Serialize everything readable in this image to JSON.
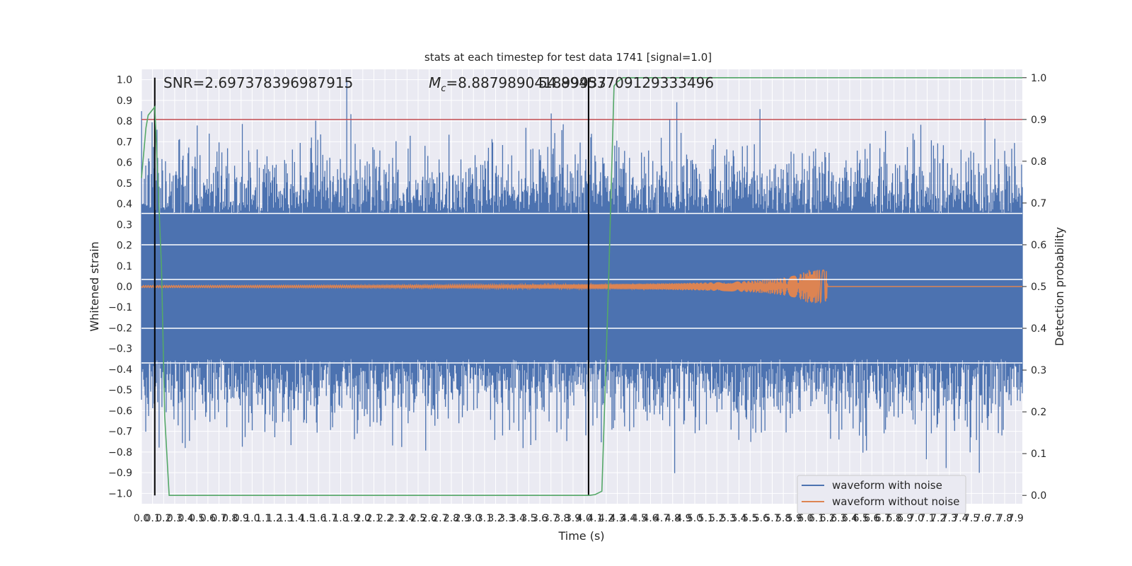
{
  "chart_data": {
    "type": "line",
    "title": "stats at each timestep for test data 1741 [signal=1.0]",
    "xlabel": "Time (s)",
    "ylabel": "Whitened strain",
    "y2label": "Detection probability",
    "xlim": [
      0,
      7.96
    ],
    "ylim": [
      -1.05,
      1.05
    ],
    "y2lim": [
      -0.02,
      1.02
    ],
    "grid": true,
    "legend_position": "lower right",
    "x_ticks": [
      0.0,
      0.1,
      0.2,
      0.3,
      0.4,
      0.5,
      0.6,
      0.7,
      0.8,
      0.9,
      1.0,
      1.1,
      1.2,
      1.3,
      1.4,
      1.5,
      1.6,
      1.7,
      1.8,
      1.9,
      2.0,
      2.1,
      2.2,
      2.3,
      2.4,
      2.5,
      2.6,
      2.7,
      2.8,
      2.9,
      3.0,
      3.1,
      3.2,
      3.3,
      3.4,
      3.5,
      3.6,
      3.7,
      3.8,
      3.9,
      4.0,
      4.1,
      4.2,
      4.3,
      4.4,
      4.5,
      4.6,
      4.7,
      4.8,
      4.9,
      5.0,
      5.1,
      5.2,
      5.3,
      5.4,
      5.5,
      5.6,
      5.7,
      5.8,
      5.9,
      6.0,
      6.1,
      6.2,
      6.3,
      6.4,
      6.5,
      6.6,
      6.7,
      6.8,
      6.9,
      7.0,
      7.1,
      7.2,
      7.3,
      7.4,
      7.5,
      7.6,
      7.7,
      7.8,
      7.9
    ],
    "y_ticks": [
      -1.0,
      -0.9,
      -0.8,
      -0.7,
      -0.6,
      -0.5,
      -0.4,
      -0.3,
      -0.2,
      -0.1,
      0.0,
      0.1,
      0.2,
      0.3,
      0.4,
      0.5,
      0.6,
      0.7,
      0.8,
      0.9,
      1.0
    ],
    "y2_ticks": [
      0.0,
      0.1,
      0.2,
      0.3,
      0.4,
      0.5,
      0.6,
      0.7,
      0.8,
      0.9,
      1.0
    ],
    "annotations": {
      "snr": "SNR=2.697378396987915",
      "mc_prefix": "M",
      "mc_sub": "c",
      "mc_value": "=8.887989041899937",
      "overlap": "54.89453709129333496"
    },
    "series": [
      {
        "name": "waveform with noise",
        "color": "#4c72b0",
        "axis": "left",
        "kind": "noise",
        "x_range": [
          0,
          7.96
        ],
        "core_band": [
          -0.35,
          0.35
        ],
        "peak_max": 1.0,
        "peak_min": -0.93
      },
      {
        "name": "waveform without noise",
        "color": "#dd8452",
        "axis": "left",
        "kind": "chirp",
        "x_start": 0.0,
        "merger_time": 6.2,
        "amplitude_start": 0.005,
        "amplitude_peak": 0.08
      },
      {
        "name": "",
        "color": "#55a868",
        "axis": "right",
        "kind": "line",
        "x": [
          0.0,
          0.04,
          0.06,
          0.12,
          0.18,
          0.21,
          0.25,
          0.35,
          1.0,
          2.0,
          3.0,
          4.0,
          4.05,
          4.1,
          4.16,
          4.22,
          4.27,
          4.3,
          4.35,
          4.4,
          5.0,
          6.0,
          7.0,
          7.96
        ],
        "y": [
          0.76,
          0.88,
          0.91,
          0.93,
          0.55,
          0.19,
          0.0,
          0.0,
          0.0,
          0.0,
          0.0,
          0.0,
          0.0,
          0.002,
          0.01,
          0.5,
          0.98,
          0.99,
          1.0,
          1.0,
          1.0,
          1.0,
          1.0,
          1.0
        ]
      }
    ],
    "hlines": [
      {
        "axis": "right",
        "y": 0.9,
        "color": "#c44e52"
      },
      {
        "axis": "right",
        "y": 0.675,
        "color": "#ffffff"
      },
      {
        "axis": "right",
        "y": 0.6,
        "color": "#ffffff"
      },
      {
        "axis": "right",
        "y": 0.517,
        "color": "#ffffff"
      },
      {
        "axis": "right",
        "y": 0.4,
        "color": "#ffffff"
      },
      {
        "axis": "right",
        "y": 0.317,
        "color": "#ffffff"
      }
    ],
    "vlines": [
      {
        "x": 0.12,
        "y_from": 0.0,
        "y_to": 1.0,
        "axis": "right",
        "color": "#000000"
      },
      {
        "x": 4.04,
        "y_from": 0.0,
        "y_to": 1.0,
        "axis": "right",
        "color": "#000000"
      }
    ]
  }
}
